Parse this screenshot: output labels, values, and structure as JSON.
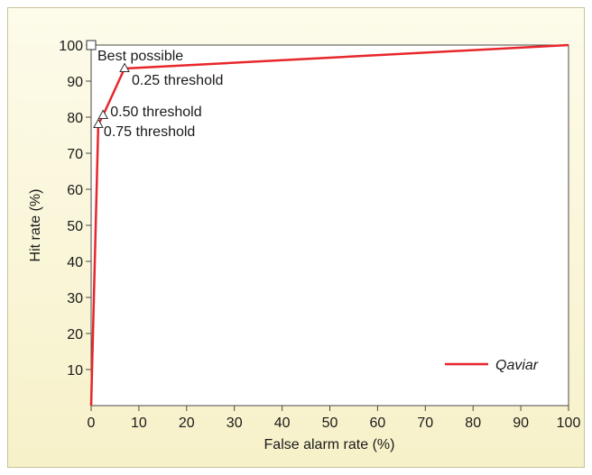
{
  "chart_data": {
    "type": "line",
    "xlabel": "False alarm rate (%)",
    "ylabel": "Hit rate (%)",
    "xlim": [
      0,
      100
    ],
    "ylim": [
      0,
      100
    ],
    "x_ticks": [
      0,
      10,
      20,
      30,
      40,
      50,
      60,
      70,
      80,
      90,
      100
    ],
    "y_ticks": [
      10,
      20,
      30,
      40,
      50,
      60,
      70,
      80,
      90,
      100
    ],
    "grid": false,
    "legend_position": "bottom-right",
    "series": [
      {
        "name": "Qaviar",
        "color": "#e8262b",
        "points": [
          {
            "x": 0,
            "y": 0
          },
          {
            "x": 1.5,
            "y": 78
          },
          {
            "x": 2.5,
            "y": 80.5
          },
          {
            "x": 7,
            "y": 93.5
          },
          {
            "x": 100,
            "y": 100
          }
        ]
      }
    ],
    "annotations": [
      {
        "label": "Best possible",
        "x": 0,
        "y": 100,
        "marker": "square"
      },
      {
        "label": "0.25 threshold",
        "x": 7,
        "y": 93.5,
        "marker": "triangle"
      },
      {
        "label": "0.50 threshold",
        "x": 2.5,
        "y": 80.5,
        "marker": "triangle"
      },
      {
        "label": "0.75 threshold",
        "x": 1.5,
        "y": 78,
        "marker": "triangle"
      }
    ]
  }
}
